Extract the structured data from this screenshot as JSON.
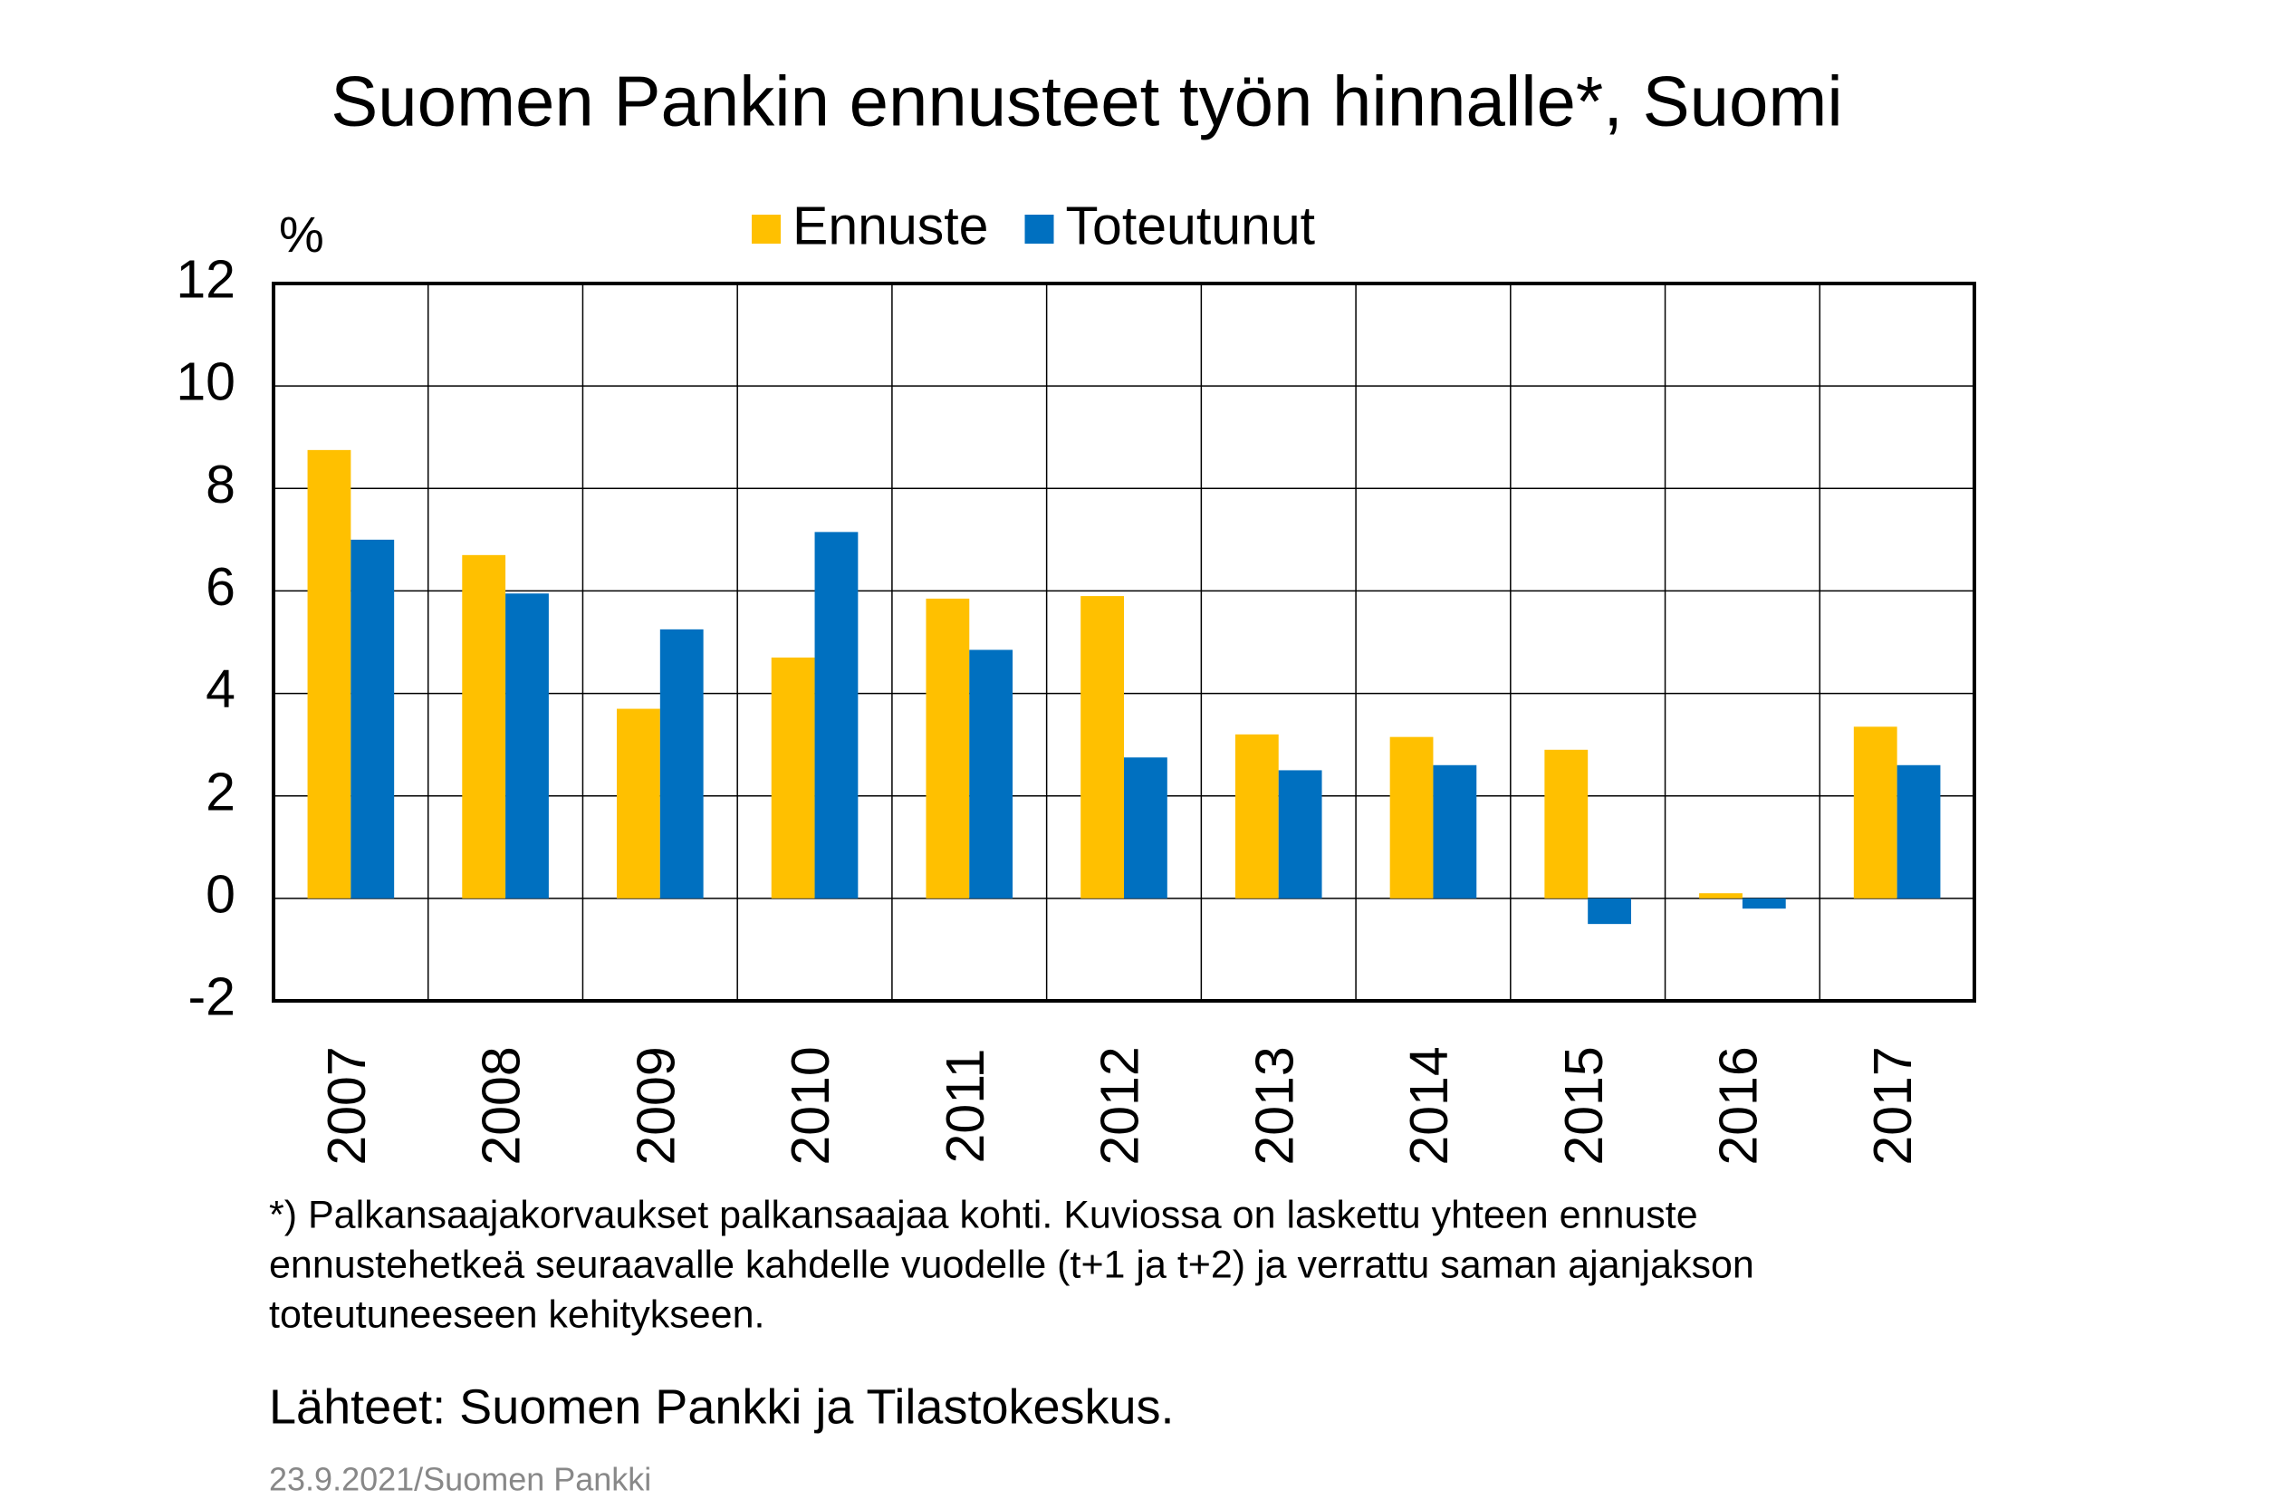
{
  "chart_data": {
    "type": "bar",
    "title": "Suomen Pankin ennusteet työn hinnalle*, Suomi",
    "y_label": "%",
    "categories": [
      "2007",
      "2008",
      "2009",
      "2010",
      "2011",
      "2012",
      "2013",
      "2014",
      "2015",
      "2016",
      "2017"
    ],
    "series": [
      {
        "name": "Ennuste",
        "color": "#ffc000",
        "values": [
          8.75,
          6.7,
          3.7,
          4.7,
          5.85,
          5.9,
          3.2,
          3.15,
          2.9,
          0.1,
          3.35
        ]
      },
      {
        "name": "Toteutunut",
        "color": "#0070c0",
        "values": [
          7.0,
          5.95,
          5.25,
          7.15,
          4.85,
          2.75,
          2.5,
          2.6,
          -0.5,
          -0.2,
          2.6
        ]
      }
    ],
    "ylim": [
      -2,
      12
    ],
    "yticks": [
      -2,
      0,
      2,
      4,
      6,
      8,
      10,
      12
    ],
    "grid": true,
    "legend": "top",
    "notes": [
      "*) Palkansaajakorvaukset palkansaajaa kohti. Kuviossa on laskettu yhteen ennuste",
      "ennustehetkeä seuraavalle kahdelle vuodelle (t+1 ja t+2) ja verrattu saman ajanjakson",
      "toteutuneeseen kehitykseen."
    ],
    "source": "Lähteet: Suomen Pankki ja Tilastokeskus.",
    "footer": "23.9.2021/Suomen  Pankki"
  }
}
